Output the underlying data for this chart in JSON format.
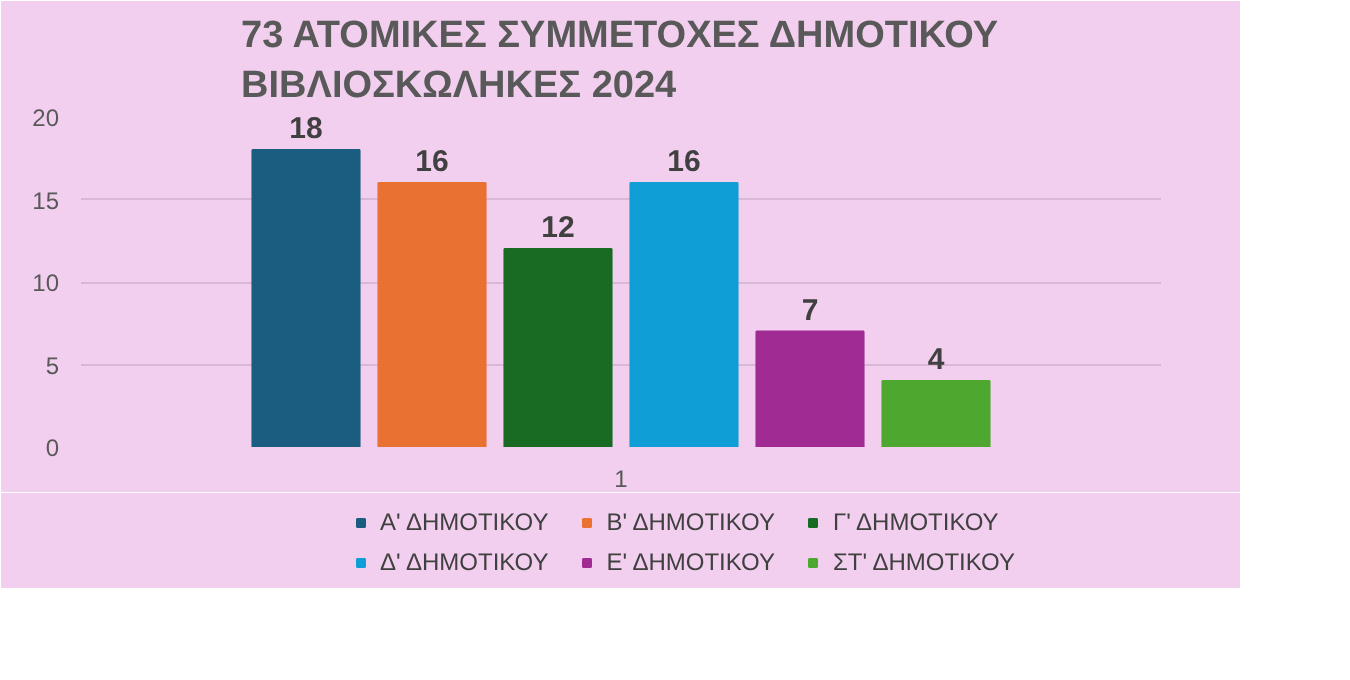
{
  "chart_data": {
    "type": "bar",
    "title": "73 ΑΤΟΜΙΚΕΣ ΣΥΜΜΕΤΟΧΕΣ ΔΗΜΟΤΙΚΟΥ ΒΙΒΛΙΟΣΚΩΛΗΚΕΣ 2024",
    "categories": [
      "1"
    ],
    "series": [
      {
        "name": "Α' ΔΗΜΟΤΙΚΟΥ",
        "color": "#1b5d80",
        "values": [
          18
        ]
      },
      {
        "name": "Β' ΔΗΜΟΤΙΚΟΥ",
        "color": "#e97132",
        "values": [
          16
        ]
      },
      {
        "name": "Γ' ΔΗΜΟΤΙΚΟΥ",
        "color": "#196b24",
        "values": [
          12
        ]
      },
      {
        "name": "Δ' ΔΗΜΟΤΙΚΟΥ",
        "color": "#0f9ed5",
        "values": [
          16
        ]
      },
      {
        "name": "Ε' ΔΗΜΟΤΙΚΟΥ",
        "color": "#a02b93",
        "values": [
          7
        ]
      },
      {
        "name": "ΣΤ' ΔΗΜΟΤΙΚΟΥ",
        "color": "#4ea72e",
        "values": [
          4
        ]
      }
    ],
    "ylim": [
      0,
      20
    ],
    "yticks": [
      0,
      5,
      10,
      15,
      20
    ],
    "grid": "y",
    "data_labels": true,
    "legend": "bottom"
  }
}
